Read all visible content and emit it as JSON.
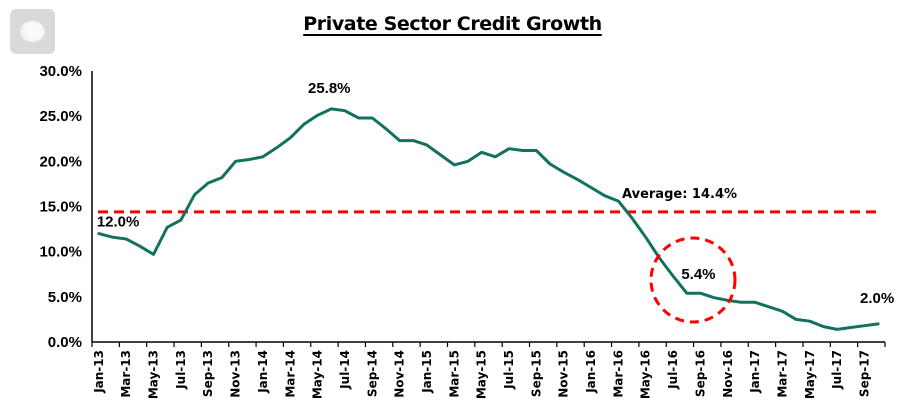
{
  "window": {
    "corner_button_icon": "toggle-knob-icon"
  },
  "chart_data": {
    "type": "line",
    "title": "Private Sector Credit Growth",
    "xlabel": "",
    "ylabel": "",
    "ylim": [
      0,
      30
    ],
    "y_ticks": [
      "0.0%",
      "5.0%",
      "10.0%",
      "15.0%",
      "20.0%",
      "25.0%",
      "30.0%"
    ],
    "y_tick_values": [
      0,
      5,
      10,
      15,
      20,
      25,
      30
    ],
    "grid": false,
    "legend": "none",
    "x": [
      "Jan-13",
      "Feb-13",
      "Mar-13",
      "Apr-13",
      "May-13",
      "Jun-13",
      "Jul-13",
      "Aug-13",
      "Sep-13",
      "Oct-13",
      "Nov-13",
      "Dec-13",
      "Jan-14",
      "Feb-14",
      "Mar-14",
      "Apr-14",
      "May-14",
      "Jun-14",
      "Jul-14",
      "Aug-14",
      "Sep-14",
      "Oct-14",
      "Nov-14",
      "Dec-14",
      "Jan-15",
      "Feb-15",
      "Mar-15",
      "Apr-15",
      "May-15",
      "Jun-15",
      "Jul-15",
      "Aug-15",
      "Sep-15",
      "Oct-15",
      "Nov-15",
      "Dec-15",
      "Jan-16",
      "Feb-16",
      "Mar-16",
      "Apr-16",
      "May-16",
      "Jun-16",
      "Jul-16",
      "Aug-16",
      "Sep-16",
      "Oct-16",
      "Nov-16",
      "Dec-16",
      "Jan-17",
      "Feb-17",
      "Mar-17",
      "Apr-17",
      "May-17",
      "Jun-17",
      "Jul-17",
      "Aug-17",
      "Sep-17",
      "Oct-17"
    ],
    "x_tick_labels": [
      "Jan-13",
      "Mar-13",
      "May-13",
      "Jul-13",
      "Sep-13",
      "Nov-13",
      "Jan-14",
      "Mar-14",
      "May-14",
      "Jul-14",
      "Sep-14",
      "Nov-14",
      "Jan-15",
      "Mar-15",
      "May-15",
      "Jul-15",
      "Sep-15",
      "Nov-15",
      "Jan-16",
      "Mar-16",
      "May-16",
      "Jul-16",
      "Sep-16",
      "Nov-16",
      "Jan-17",
      "Mar-17",
      "May-17",
      "Jul-17",
      "Sep-17"
    ],
    "series": [
      {
        "name": "Private Sector Credit Growth",
        "color": "#12715f",
        "values": [
          12.0,
          11.6,
          11.4,
          10.6,
          9.7,
          12.7,
          13.5,
          16.3,
          17.6,
          18.2,
          20.0,
          20.2,
          20.5,
          21.5,
          22.6,
          24.1,
          25.1,
          25.8,
          25.6,
          24.8,
          24.8,
          23.6,
          22.3,
          22.3,
          21.8,
          20.7,
          19.6,
          20.0,
          21.0,
          20.5,
          21.4,
          21.2,
          21.2,
          19.7,
          18.8,
          18.0,
          17.1,
          16.2,
          15.6,
          13.7,
          11.6,
          9.3,
          7.3,
          5.4,
          5.4,
          4.9,
          4.6,
          4.4,
          4.4,
          3.9,
          3.4,
          2.5,
          2.3,
          1.7,
          1.4,
          1.6,
          1.8,
          2.0
        ]
      }
    ],
    "reference_line": {
      "name": "Average",
      "value": 14.4,
      "label": "Average: 14.4%",
      "color": "#ff0000",
      "style": "dashed"
    },
    "annotations": [
      {
        "text": "12.0%",
        "x": "Jan-13",
        "value": 12.0
      },
      {
        "text": "25.8%",
        "x": "Jun-14",
        "value": 25.8
      },
      {
        "text": "5.4%",
        "x": "Sep-16",
        "value": 5.4,
        "highlight": "dashed-circle"
      },
      {
        "text": "2.0%",
        "x": "Oct-17",
        "value": 2.0
      }
    ],
    "highlight_circle_color": "#ff0000"
  }
}
